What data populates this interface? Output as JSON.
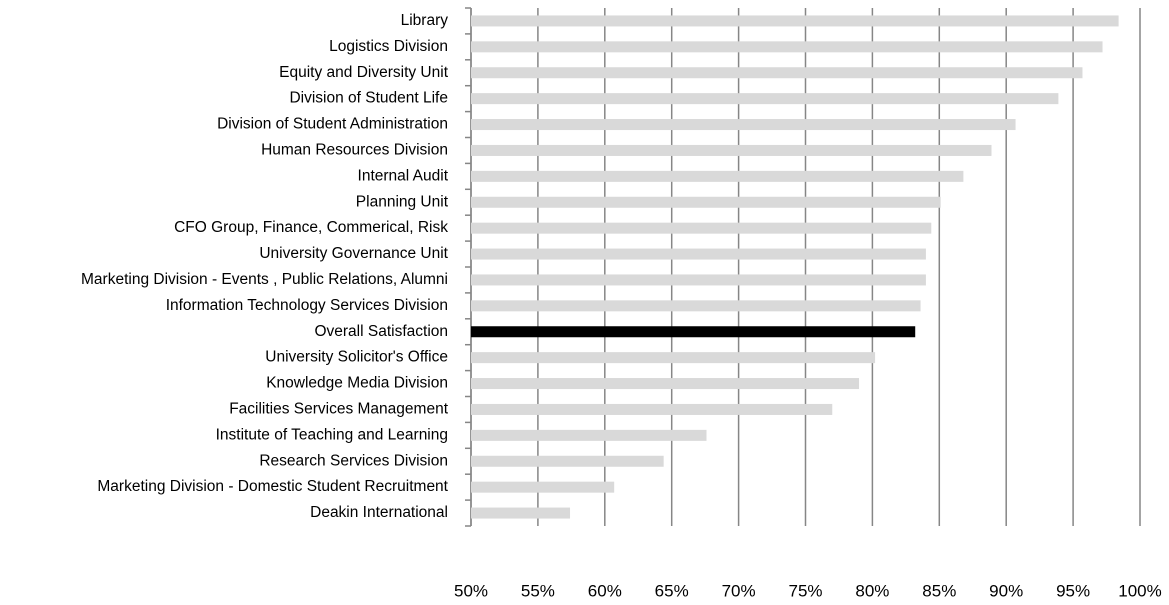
{
  "chart_data": {
    "type": "barh",
    "categories": [
      "Library",
      "Logistics Division",
      "Equity and Diversity Unit",
      "Division of Student Life",
      "Division of Student Administration",
      "Human Resources Division",
      "Internal Audit",
      "Planning Unit",
      "CFO Group, Finance, Commerical, Risk",
      "University Governance Unit",
      "Marketing Division - Events , Public Relations, Alumni",
      "Information Technology Services Division",
      "Overall Satisfaction",
      "University Solicitor's Office",
      "Knowledge Media Division",
      "Facilities Services Management",
      "Institute of Teaching and Learning",
      "Research Services Division",
      "Marketing Division - Domestic Student Recruitment",
      "Deakin International"
    ],
    "values": [
      98.4,
      97.2,
      95.7,
      93.9,
      90.7,
      88.9,
      86.8,
      85.1,
      84.4,
      84.0,
      84.0,
      83.6,
      83.2,
      80.2,
      79.0,
      77.0,
      67.6,
      64.4,
      60.7,
      57.4
    ],
    "colors": [
      "#d9d9d9",
      "#d9d9d9",
      "#d9d9d9",
      "#d9d9d9",
      "#d9d9d9",
      "#d9d9d9",
      "#d9d9d9",
      "#d9d9d9",
      "#d9d9d9",
      "#d9d9d9",
      "#d9d9d9",
      "#d9d9d9",
      "#000000",
      "#d9d9d9",
      "#d9d9d9",
      "#d9d9d9",
      "#d9d9d9",
      "#d9d9d9",
      "#d9d9d9",
      "#d9d9d9"
    ],
    "xlim": [
      50,
      100
    ],
    "xticks": [
      {
        "value": 50,
        "label": "50%"
      },
      {
        "value": 55,
        "label": "55%"
      },
      {
        "value": 60,
        "label": "60%"
      },
      {
        "value": 65,
        "label": "65%"
      },
      {
        "value": 70,
        "label": "70%"
      },
      {
        "value": 75,
        "label": "75%"
      },
      {
        "value": 80,
        "label": "80%"
      },
      {
        "value": 85,
        "label": "85%"
      },
      {
        "value": 90,
        "label": "90%"
      },
      {
        "value": 95,
        "label": "95%"
      },
      {
        "value": 100,
        "label": "100%"
      }
    ],
    "grid": true
  }
}
